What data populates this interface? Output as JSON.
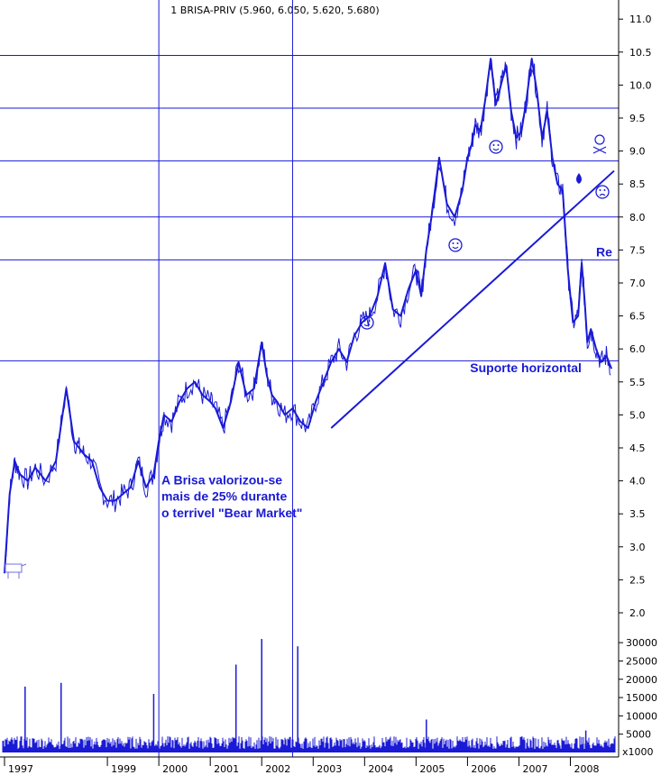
{
  "chart_data": {
    "type": "line",
    "title": "1 BRISA-PRIV (5.960, 6.050, 5.620, 5.680)",
    "xlabel": "",
    "ylabel": "",
    "ylim": [
      1.9,
      11.1
    ],
    "yticks": [
      2.0,
      2.5,
      3.0,
      3.5,
      4.0,
      4.5,
      5.0,
      5.5,
      6.0,
      6.5,
      7.0,
      7.5,
      8.0,
      8.5,
      9.0,
      9.5,
      10.0,
      10.5,
      11.0
    ],
    "ytick_labels": [
      "2.0",
      "2.5",
      "3.0",
      "3.5",
      "4.0",
      "4.5",
      "5.0",
      "5.5",
      "6.0",
      "6.5",
      "7.0",
      "7.5",
      "8.0",
      "8.5",
      "9.0",
      "9.5",
      "10.0",
      "10.5",
      "11.0"
    ],
    "xlim": [
      1997.0,
      2008.85
    ],
    "xticks": [
      1997,
      1999,
      2000,
      2001,
      2002,
      2003,
      2004,
      2005,
      2006,
      2007,
      2008
    ],
    "xtick_labels": [
      "1997",
      "1999",
      "2000",
      "2001",
      "2002",
      "2003",
      "2004",
      "2005",
      "2006",
      "2007",
      "2008"
    ],
    "series": [
      {
        "x": [
          1997.0,
          1997.1,
          1997.2,
          1997.3,
          1997.45,
          1997.6,
          1997.8,
          1998.0,
          1998.2,
          1998.35,
          1998.45,
          1998.55,
          1998.7,
          1998.85,
          1999.0,
          1999.15,
          1999.3,
          1999.45,
          1999.6,
          1999.75,
          1999.9,
          2000.0,
          2000.1,
          2000.25,
          2000.4,
          2000.55,
          2000.7,
          2000.85,
          2001.0,
          2001.1,
          2001.25,
          2001.4,
          2001.55,
          2001.7,
          2001.85,
          2002.0,
          2002.1,
          2002.2,
          2002.3,
          2002.45,
          2002.6,
          2002.75,
          2002.9,
          2003.05,
          2003.2,
          2003.35,
          2003.5,
          2003.65,
          2003.8,
          2003.95,
          2004.1,
          2004.25,
          2004.4,
          2004.55,
          2004.7,
          2004.85,
          2005.0,
          2005.1,
          2005.2,
          2005.3,
          2005.45,
          2005.6,
          2005.75,
          2005.9,
          2006.0,
          2006.08,
          2006.15,
          2006.25,
          2006.35,
          2006.45,
          2006.55,
          2006.65,
          2006.75,
          2006.85,
          2006.95,
          2007.05,
          2007.15,
          2007.25,
          2007.35,
          2007.45,
          2007.55,
          2007.65,
          2007.75,
          2007.85,
          2007.95,
          2008.05,
          2008.15,
          2008.22,
          2008.28,
          2008.33,
          2008.4,
          2008.5,
          2008.6,
          2008.7,
          2008.8
        ],
        "values": [
          2.6,
          3.8,
          4.3,
          4.1,
          4.0,
          4.2,
          4.0,
          4.3,
          5.4,
          4.6,
          4.5,
          4.4,
          4.3,
          3.9,
          3.7,
          3.7,
          3.8,
          3.9,
          4.3,
          3.9,
          4.1,
          4.6,
          5.0,
          4.9,
          5.2,
          5.4,
          5.5,
          5.3,
          5.2,
          5.1,
          4.8,
          5.2,
          5.8,
          5.3,
          5.4,
          6.1,
          5.6,
          5.3,
          5.2,
          5.0,
          5.1,
          4.9,
          4.8,
          5.2,
          5.5,
          5.8,
          6.0,
          5.8,
          6.2,
          6.4,
          6.5,
          6.8,
          7.3,
          6.6,
          6.5,
          6.9,
          7.2,
          6.8,
          7.5,
          8.0,
          8.9,
          8.2,
          8.0,
          8.4,
          8.9,
          9.1,
          9.4,
          9.3,
          9.8,
          10.4,
          9.7,
          10.0,
          10.3,
          9.6,
          9.2,
          9.3,
          9.8,
          10.4,
          9.9,
          9.2,
          9.6,
          8.9,
          8.5,
          8.4,
          7.2,
          6.4,
          6.5,
          7.3,
          6.7,
          6.1,
          6.3,
          6.0,
          5.8,
          5.9,
          5.7
        ]
      }
    ],
    "volume": {
      "axis_labels": [
        "30000",
        "25000",
        "20000",
        "15000",
        "10000",
        "5000"
      ],
      "unit": "x1000",
      "spikes": [
        {
          "x": 1997.4,
          "v": 18000
        },
        {
          "x": 1998.1,
          "v": 19000
        },
        {
          "x": 1999.9,
          "v": 16000
        },
        {
          "x": 2001.5,
          "v": 24000
        },
        {
          "x": 2002.0,
          "v": 31000
        },
        {
          "x": 2002.7,
          "v": 29000
        },
        {
          "x": 2005.2,
          "v": 9000
        },
        {
          "x": 2008.3,
          "v": 6000
        }
      ]
    },
    "horizontal_lines": [
      10.45,
      9.65,
      8.85,
      8.0,
      7.35,
      5.82
    ],
    "vertical_lines": [
      2000.0,
      2002.6
    ],
    "trendline": {
      "from": [
        2003.35,
        4.8
      ],
      "to": [
        2008.85,
        8.7
      ]
    },
    "annotations": [
      {
        "text": "A Brisa valorizou-se",
        "x": 2000.05,
        "y": 3.95
      },
      {
        "text": "mais de 25% durante",
        "x": 2000.05,
        "y": 3.7
      },
      {
        "text": "o terrivel \"Bear Market\"",
        "x": 2000.05,
        "y": 3.45
      },
      {
        "text": "Suporte horizontal",
        "x": 2006.05,
        "y": 5.65
      },
      {
        "text": "Re",
        "x": 2008.5,
        "y": 7.4
      }
    ],
    "grid": false,
    "legend": "none"
  }
}
